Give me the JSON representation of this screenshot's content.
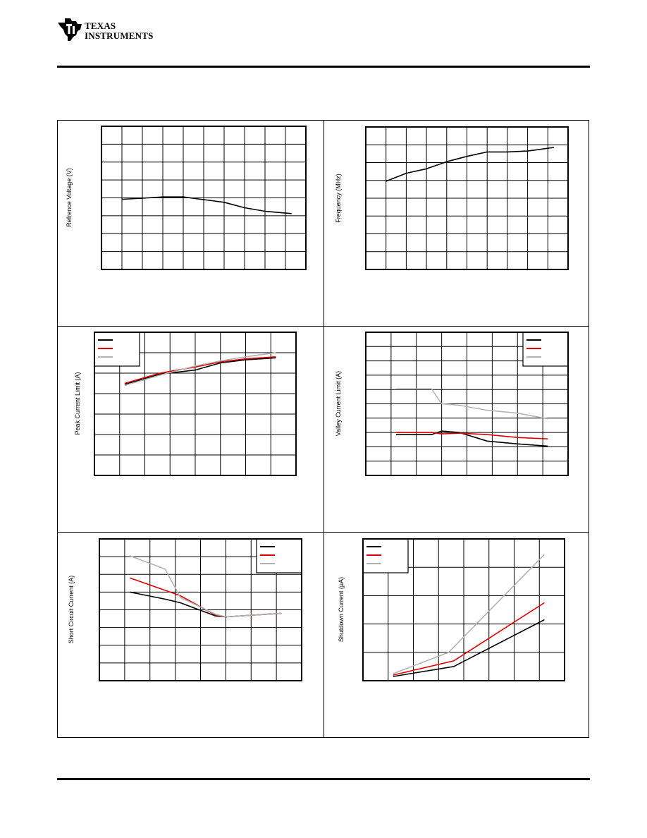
{
  "header": {
    "logo_name": "ti-logo-icon",
    "logo_line1": "TEXAS",
    "logo_line2": "INSTRUMENTS"
  },
  "colors": {
    "line_black": "#000000",
    "line_red": "#e00000",
    "line_gray": "#b4b4b4",
    "grid": "#000000"
  },
  "chart_data": [
    {
      "id": "ref-voltage",
      "type": "line",
      "ylabel": "Refrence Voltage (V)",
      "grid_cols": 10,
      "grid_rows": 8,
      "xlim": [
        0,
        10
      ],
      "ylim": [
        0,
        8
      ],
      "legend": null,
      "series": [
        {
          "color": "line_black",
          "x": [
            1,
            2,
            3,
            4,
            5,
            6,
            7,
            8,
            9.3
          ],
          "y": [
            3.92,
            3.98,
            4.05,
            4.05,
            3.9,
            3.75,
            3.45,
            3.25,
            3.12
          ]
        }
      ]
    },
    {
      "id": "frequency",
      "type": "line",
      "ylabel": "Frequency (MHz)",
      "grid_cols": 10,
      "grid_rows": 8,
      "xlim": [
        0,
        10
      ],
      "ylim": [
        0,
        8
      ],
      "legend": null,
      "series": [
        {
          "color": "line_black",
          "x": [
            1,
            2,
            3,
            4,
            5,
            6,
            7,
            8,
            9.3
          ],
          "y": [
            4.95,
            5.4,
            5.65,
            6.05,
            6.35,
            6.6,
            6.6,
            6.65,
            6.85
          ]
        }
      ]
    },
    {
      "id": "peak-current",
      "type": "line",
      "ylabel": "Peak Current Limit (A)",
      "grid_cols": 8,
      "grid_rows": 7,
      "xlim": [
        0,
        8
      ],
      "ylim": [
        0,
        7
      ],
      "legend": "top-left",
      "series": [
        {
          "color": "line_black",
          "x": [
            1.2,
            2.6,
            4.0,
            5.0,
            6.0,
            7.2
          ],
          "y": [
            4.45,
            4.95,
            5.15,
            5.5,
            5.65,
            5.75
          ]
        },
        {
          "color": "line_red",
          "x": [
            1.2,
            2.6,
            4.0,
            5.0,
            6.0,
            7.2
          ],
          "y": [
            4.5,
            5.0,
            5.3,
            5.55,
            5.7,
            5.8
          ]
        },
        {
          "color": "line_gray",
          "x": [
            1.2,
            2.6,
            4.0,
            5.0,
            6.0,
            7.2
          ],
          "y": [
            4.4,
            4.9,
            5.35,
            5.6,
            5.8,
            6.0
          ]
        }
      ]
    },
    {
      "id": "valley-current",
      "type": "line",
      "ylabel": "Valley Current Limit (A)",
      "grid_cols": 8,
      "grid_rows": 10,
      "xlim": [
        0,
        8
      ],
      "ylim": [
        0,
        10
      ],
      "legend": "top-right",
      "series": [
        {
          "color": "line_black",
          "x": [
            1.2,
            2.6,
            3.0,
            3.7,
            4.8,
            6.0,
            7.2
          ],
          "y": [
            2.85,
            2.85,
            3.1,
            3.0,
            2.4,
            2.2,
            2.05
          ]
        },
        {
          "color": "line_red",
          "x": [
            1.2,
            2.6,
            3.0,
            3.7,
            4.8,
            6.0,
            7.2
          ],
          "y": [
            3.0,
            3.0,
            2.9,
            2.95,
            2.85,
            2.65,
            2.55
          ]
        },
        {
          "color": "line_gray",
          "x": [
            1.2,
            2.6,
            3.0,
            3.7,
            4.8,
            6.0,
            7.2
          ],
          "y": [
            6.05,
            6.05,
            5.0,
            4.9,
            4.55,
            4.35,
            3.95
          ]
        }
      ]
    },
    {
      "id": "short-circuit",
      "type": "line",
      "ylabel": "Short Circuit Current (A)",
      "grid_cols": 8,
      "grid_rows": 8,
      "xlim": [
        0,
        8
      ],
      "ylim": [
        0,
        8
      ],
      "legend": "top-right",
      "series": [
        {
          "color": "line_black",
          "x": [
            1.2,
            2.6,
            3.2,
            4.6,
            5.0,
            7.2
          ],
          "y": [
            5.0,
            4.6,
            4.4,
            3.65,
            3.6,
            3.8
          ]
        },
        {
          "color": "line_red",
          "x": [
            1.2,
            2.6,
            3.2,
            4.6,
            5.0,
            7.2
          ],
          "y": [
            5.8,
            5.1,
            4.8,
            3.7,
            3.6,
            3.8
          ]
        },
        {
          "color": "line_gray",
          "x": [
            1.2,
            2.6,
            3.2,
            4.6,
            5.0,
            7.2
          ],
          "y": [
            7.05,
            6.3,
            4.7,
            3.75,
            3.6,
            3.8
          ]
        }
      ]
    },
    {
      "id": "shutdown-current",
      "type": "line",
      "ylabel": "Shutdown Current (µA)",
      "grid_cols": 8,
      "grid_rows": 5,
      "xlim": [
        0,
        8
      ],
      "ylim": [
        0,
        5
      ],
      "legend": "top-left",
      "series": [
        {
          "color": "line_black",
          "x": [
            1.2,
            3.6,
            7.2
          ],
          "y": [
            0.15,
            0.5,
            2.15
          ]
        },
        {
          "color": "line_red",
          "x": [
            1.2,
            3.6,
            7.2
          ],
          "y": [
            0.2,
            0.7,
            2.75
          ]
        },
        {
          "color": "line_gray",
          "x": [
            1.2,
            3.4,
            7.2
          ],
          "y": [
            0.25,
            1.0,
            4.45
          ]
        }
      ]
    }
  ]
}
